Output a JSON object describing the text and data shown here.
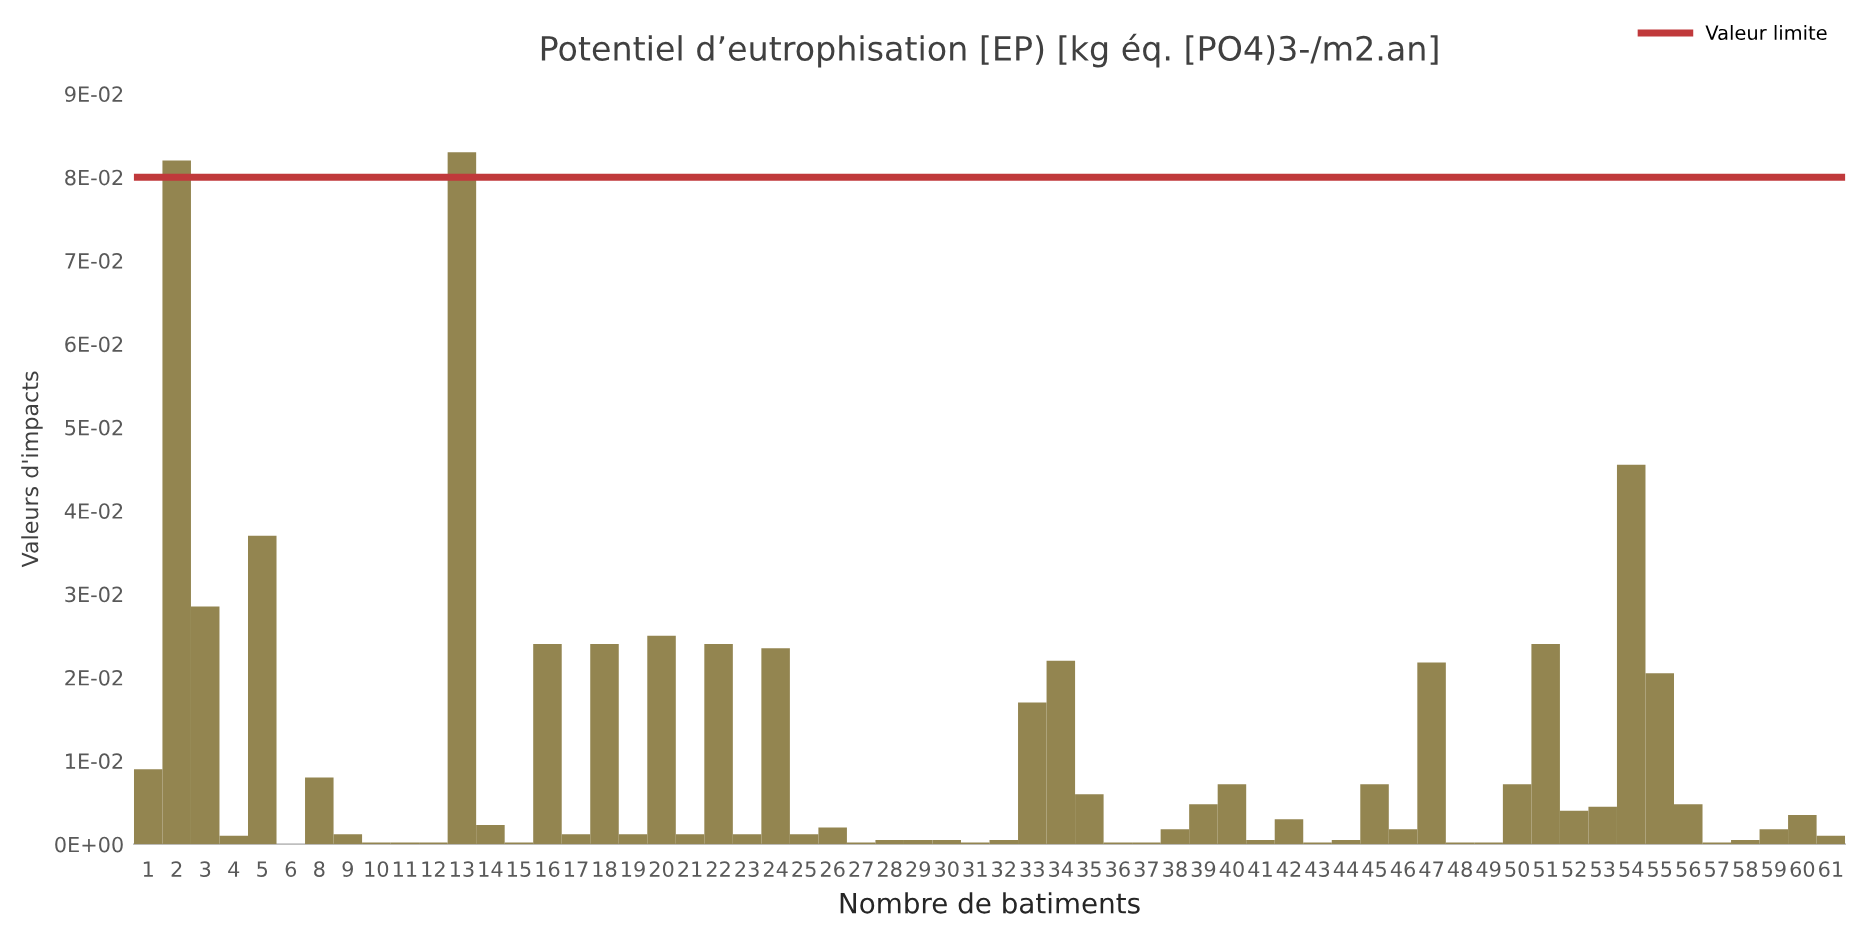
{
  "chart_data": {
    "type": "bar",
    "title": "Potentiel d’eutrophisation [EP) [kg éq. [PO4)3-/m2.an]",
    "xlabel": "Nombre de batiments",
    "ylabel": "Valeurs d'impacts",
    "categories": [
      "1",
      "2",
      "3",
      "4",
      "5",
      "6",
      "8",
      "9",
      "10",
      "11",
      "12",
      "13",
      "14",
      "15",
      "16",
      "17",
      "18",
      "19",
      "20",
      "21",
      "22",
      "23",
      "24",
      "25",
      "26",
      "27",
      "28",
      "29",
      "30",
      "31",
      "32",
      "33",
      "34",
      "35",
      "36",
      "37",
      "38",
      "39",
      "40",
      "41",
      "42",
      "43",
      "44",
      "45",
      "46",
      "47",
      "48",
      "49",
      "50",
      "51",
      "52",
      "53",
      "54",
      "55",
      "56",
      "57",
      "58",
      "59",
      "60",
      "61"
    ],
    "values": [
      0.009,
      0.082,
      0.0285,
      0.001,
      0.037,
      0,
      0.008,
      0.0012,
      0.0002,
      0.0002,
      0.0002,
      0.083,
      0.0023,
      0.0002,
      0.024,
      0.0012,
      0.024,
      0.0012,
      0.025,
      0.0012,
      0.024,
      0.0012,
      0.0235,
      0.0012,
      0.002,
      0.0002,
      0.0005,
      0.0005,
      0.0005,
      0.0002,
      0.0005,
      0.017,
      0.022,
      0.006,
      0.0002,
      0.0002,
      0.0018,
      0.0048,
      0.0072,
      0.0005,
      0.003,
      0.0002,
      0.0005,
      0.0072,
      0.0018,
      0.0218,
      0.0002,
      0.0002,
      0.0072,
      0.024,
      0.004,
      0.0045,
      0.0455,
      0.0205,
      0.0048,
      0.0002,
      0.0005,
      0.0018,
      0.0035,
      0.001
    ],
    "color": "#938550",
    "ylim": [
      0,
      0.09
    ],
    "yticks": [
      {
        "value": 0,
        "label": "0E+00"
      },
      {
        "value": 0.01,
        "label": "1E-02"
      },
      {
        "value": 0.02,
        "label": "2E-02"
      },
      {
        "value": 0.03,
        "label": "3E-02"
      },
      {
        "value": 0.04,
        "label": "4E-02"
      },
      {
        "value": 0.05,
        "label": "5E-02"
      },
      {
        "value": 0.06,
        "label": "6E-02"
      },
      {
        "value": 0.07,
        "label": "7E-02"
      },
      {
        "value": 0.08,
        "label": "8E-02"
      },
      {
        "value": 0.09,
        "label": "9E-02"
      }
    ],
    "ref_lines": [
      {
        "axis": "y",
        "value": 0.08,
        "label": "Valeur limite",
        "color": "#c0393b",
        "line_style": "solid"
      }
    ],
    "legend": "top right",
    "grid": false
  }
}
